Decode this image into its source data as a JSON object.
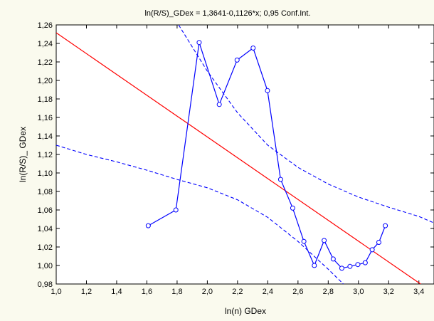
{
  "chart_data": {
    "type": "line",
    "title": "ln(R/S)_GDex = 1,3641-0,1126*x; 0,95 Conf.Int.",
    "xlabel": "ln(n)   GDex",
    "ylabel": "ln(R/S)_ GDex",
    "xlim": [
      1.0,
      3.5
    ],
    "ylim": [
      0.98,
      1.26
    ],
    "x_ticks": [
      "1,0",
      "1,2",
      "1,4",
      "1,6",
      "1,8",
      "2,0",
      "2,2",
      "2,4",
      "2,6",
      "2,8",
      "3,0",
      "3,2",
      "3,4"
    ],
    "x_tick_values": [
      1.0,
      1.2,
      1.4,
      1.6,
      1.8,
      2.0,
      2.2,
      2.4,
      2.6,
      2.8,
      3.0,
      3.2,
      3.4
    ],
    "y_ticks": [
      "0,98",
      "1,00",
      "1,02",
      "1,04",
      "1,06",
      "1,08",
      "1,10",
      "1,12",
      "1,14",
      "1,16",
      "1,18",
      "1,20",
      "1,22",
      "1,24",
      "1,26"
    ],
    "y_tick_values": [
      0.98,
      1.0,
      1.02,
      1.04,
      1.06,
      1.08,
      1.1,
      1.12,
      1.14,
      1.16,
      1.18,
      1.2,
      1.22,
      1.24,
      1.26
    ],
    "grid": false,
    "series": [
      {
        "kind": "observed",
        "color": "#0000ff",
        "marker": "circle",
        "x": [
          1.609,
          1.792,
          1.946,
          2.079,
          2.197,
          2.303,
          2.398,
          2.485,
          2.565,
          2.639,
          2.708,
          2.773,
          2.833,
          2.89,
          2.944,
          2.996,
          3.045,
          3.091,
          3.135,
          3.178
        ],
        "y": [
          1.043,
          1.06,
          1.241,
          1.174,
          1.222,
          1.235,
          1.189,
          1.093,
          1.062,
          1.026,
          1.0,
          1.027,
          1.007,
          0.997,
          0.999,
          1.001,
          1.003,
          1.017,
          1.025,
          1.043
        ]
      },
      {
        "kind": "regression",
        "color": "#ff0000",
        "intercept": 1.3641,
        "slope": -0.1126
      },
      {
        "kind": "confidence_upper",
        "color": "#0000ff",
        "dash": "dashed",
        "x": [
          1.81,
          2.0,
          2.2,
          2.4,
          2.6,
          2.8,
          3.0,
          3.2,
          3.4,
          3.5
        ],
        "y": [
          1.26,
          1.21,
          1.165,
          1.13,
          1.106,
          1.088,
          1.074,
          1.063,
          1.053,
          1.046
        ]
      },
      {
        "kind": "confidence_lower",
        "color": "#0000ff",
        "dash": "dashed",
        "x": [
          1.0,
          1.2,
          1.4,
          1.6,
          1.8,
          2.0,
          2.2,
          2.4,
          2.6,
          2.8,
          2.9
        ],
        "y": [
          1.13,
          1.12,
          1.112,
          1.103,
          1.093,
          1.084,
          1.071,
          1.052,
          1.026,
          0.996,
          0.98
        ]
      }
    ]
  }
}
